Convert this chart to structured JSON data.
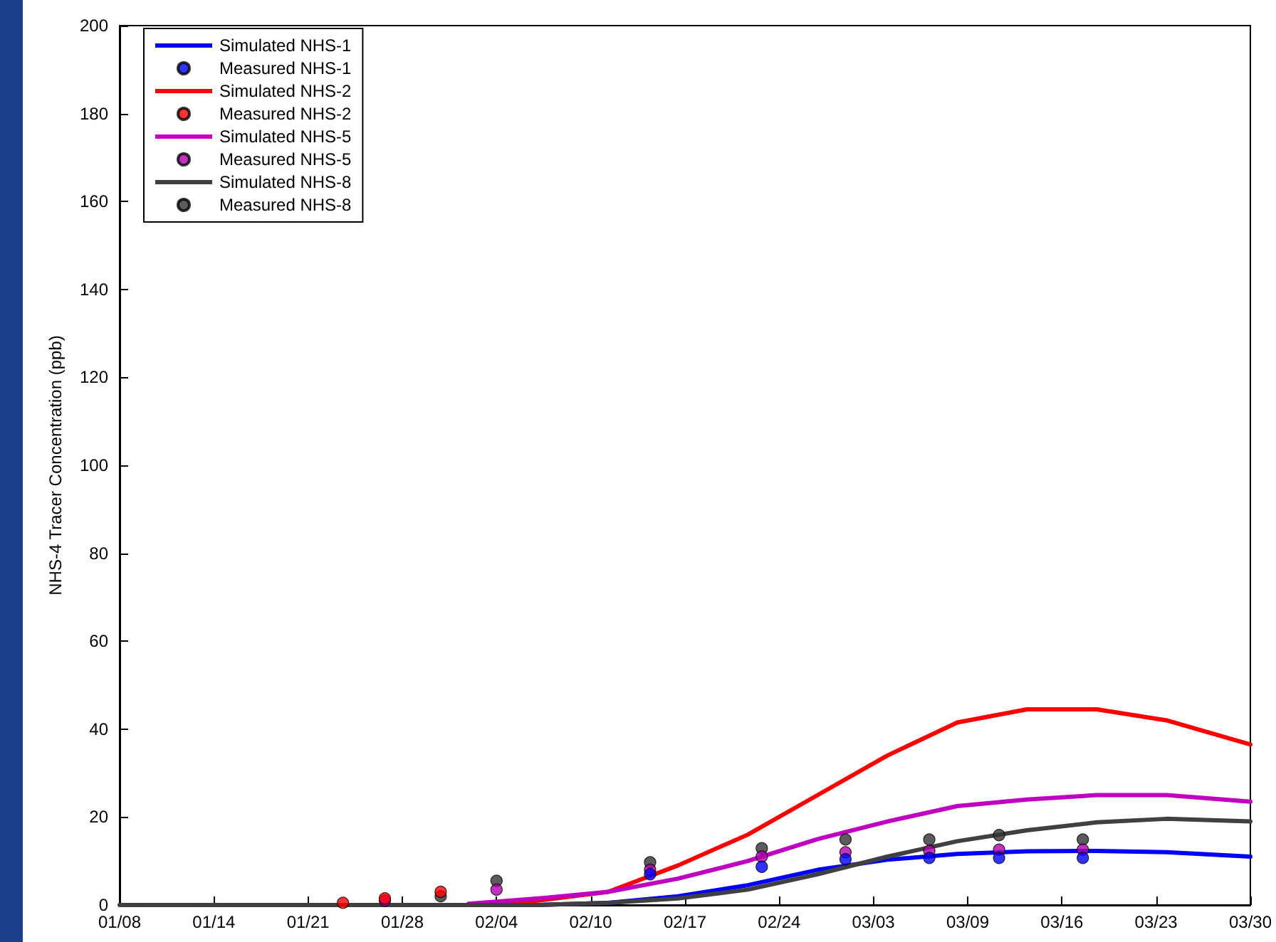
{
  "chart_data": {
    "type": "line",
    "ylabel": "NHS-4 Tracer Concentration (ppb)",
    "xlim": [
      "--01-08",
      "--03-30"
    ],
    "xticks": [
      {
        "value": "--01-08",
        "label": "01/08"
      },
      {
        "value": "--01-14T18:00",
        "label": "01/14"
      },
      {
        "value": "--01-21T12:00",
        "label": "01/21"
      },
      {
        "value": "--01-28T06:00",
        "label": "01/28"
      },
      {
        "value": "--02-04",
        "label": "02/04"
      },
      {
        "value": "--02-10T18:00",
        "label": "02/10"
      },
      {
        "value": "--02-17T12:00",
        "label": "02/17"
      },
      {
        "value": "--02-24T06:00",
        "label": "02/24"
      },
      {
        "value": "--03-03",
        "label": "03/03"
      },
      {
        "value": "--03-09T18:00",
        "label": "03/09"
      },
      {
        "value": "--03-16T12:00",
        "label": "03/16"
      },
      {
        "value": "--03-23T06:00",
        "label": "03/23"
      },
      {
        "value": "--03-30",
        "label": "03/30"
      }
    ],
    "ylim": [
      0,
      200
    ],
    "yticks": [
      0,
      20,
      40,
      60,
      80,
      100,
      120,
      140,
      160,
      180,
      200
    ],
    "grid": false,
    "legend": "top left",
    "marker": "none",
    "line_style": "solid",
    "series": [
      {
        "name": "Simulated NHS-1",
        "color": "#0000ff",
        "x": [
          "--02-07",
          "--02-12",
          "--02-17",
          "--02-22",
          "--02-27",
          "--03-04",
          "--03-09",
          "--03-14",
          "--03-19",
          "--03-24",
          "--03-30"
        ],
        "values": [
          0,
          0.5,
          2,
          4.5,
          8,
          10.3,
          11.6,
          12.2,
          12.3,
          12,
          11
        ]
      },
      {
        "name": "Measured NHS-1",
        "type": "scatter",
        "marker": "circle",
        "color": "#0000ff",
        "x": [
          "--02-15",
          "--02-23",
          "--03-01",
          "--03-07",
          "--03-12",
          "--03-18"
        ],
        "values": [
          7,
          8.7,
          10.4,
          10.7,
          10.7,
          10.7
        ]
      },
      {
        "name": "Simulated NHS-2",
        "color": "#ff0000",
        "x": [
          "--02-02",
          "--02-07",
          "--02-12",
          "--02-17",
          "--02-22",
          "--02-27",
          "--03-04",
          "--03-09",
          "--03-14",
          "--03-19",
          "--03-24",
          "--03-30"
        ],
        "values": [
          0,
          1,
          3,
          9,
          16,
          25,
          34,
          41.5,
          44.5,
          44.5,
          42,
          36.5
        ]
      },
      {
        "name": "Measured NHS-2",
        "type": "scatter",
        "marker": "circle",
        "color": "#ff0000",
        "x": [
          "--01-24",
          "--01-27",
          "--01-31"
        ],
        "values": [
          0.5,
          1.5,
          3
        ]
      },
      {
        "name": "Simulated NHS-5",
        "color": "#c000c0",
        "x": [
          "--02-02",
          "--02-07",
          "--02-12",
          "--02-17",
          "--02-22",
          "--02-27",
          "--03-04",
          "--03-09",
          "--03-14",
          "--03-19",
          "--03-24",
          "--03-30"
        ],
        "values": [
          0.3,
          1.5,
          3,
          6,
          10,
          15,
          19,
          22.5,
          24,
          25,
          25,
          23.5
        ]
      },
      {
        "name": "Measured NHS-5",
        "type": "scatter",
        "marker": "circle",
        "color": "#b000b0",
        "x": [
          "--01-27",
          "--02-04",
          "--02-15",
          "--02-23",
          "--03-01",
          "--03-07",
          "--03-12",
          "--03-18"
        ],
        "values": [
          1,
          3.5,
          8,
          11,
          12,
          12.3,
          12.6,
          12.6
        ]
      },
      {
        "name": "Simulated NHS-8",
        "color": "#404040",
        "x": [
          "--01-08",
          "--01-28",
          "--02-02",
          "--02-07",
          "--02-12",
          "--02-17",
          "--02-22",
          "--02-27",
          "--03-04",
          "--03-09",
          "--03-14",
          "--03-19",
          "--03-24",
          "--03-30"
        ],
        "values": [
          0,
          0,
          0,
          0,
          0.5,
          1.5,
          3.5,
          7,
          11,
          14.5,
          17,
          18.8,
          19.6,
          19
        ]
      },
      {
        "name": "Measured NHS-8",
        "type": "scatter",
        "marker": "circle",
        "color": "#333333",
        "x": [
          "--01-31",
          "--02-04",
          "--02-15",
          "--02-23",
          "--03-01",
          "--03-07",
          "--03-12",
          "--03-18"
        ],
        "values": [
          2,
          5.5,
          9.7,
          12.9,
          14.9,
          14.9,
          15.9,
          14.9
        ]
      }
    ]
  }
}
